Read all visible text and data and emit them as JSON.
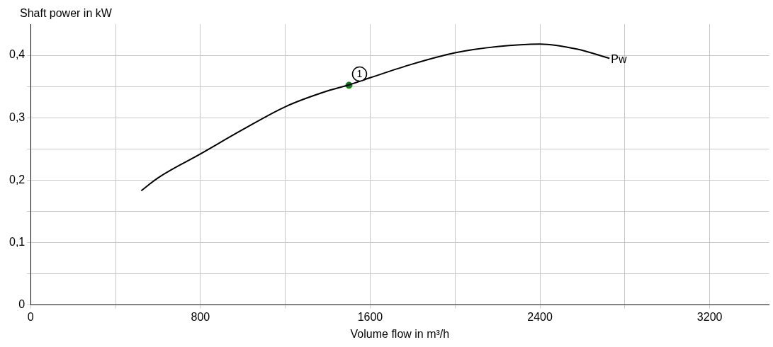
{
  "chart_data": {
    "type": "line",
    "xlabel": "Volume flow in m³/h",
    "ylabel": "Shaft power in kW",
    "xlim": [
      0,
      3480
    ],
    "ylim": [
      0,
      0.45
    ],
    "xticks": [
      0,
      {
        "value": 400,
        "label": null
      },
      800,
      {
        "value": 1200,
        "label": null
      },
      1600,
      {
        "value": 2000,
        "label": null
      },
      2400,
      {
        "value": 2800,
        "label": null
      },
      3200
    ],
    "yticks": [
      0,
      {
        "value": 0.05,
        "label": null
      },
      {
        "value": 0.1,
        "label": "0,1"
      },
      {
        "value": 0.15,
        "label": null
      },
      {
        "value": 0.2,
        "label": "0,2"
      },
      {
        "value": 0.25,
        "label": null
      },
      {
        "value": 0.3,
        "label": "0,3"
      },
      {
        "value": 0.35,
        "label": null
      },
      {
        "value": 0.4,
        "label": "0,4"
      }
    ],
    "grid": true,
    "legend": false,
    "marker": "none",
    "line_style": "solid",
    "series": [
      {
        "name": "Pw",
        "color": "#000000",
        "x": [
          521,
          602,
          800,
          1000,
          1203,
          1400,
          1504,
          1600,
          1800,
          2000,
          2200,
          2400,
          2574,
          2728
        ],
        "values": [
          0.183,
          0.204,
          0.242,
          0.281,
          0.318,
          0.343,
          0.353,
          0.364,
          0.386,
          0.404,
          0.414,
          0.418,
          0.41,
          0.395
        ]
      },
      {
        "type": "scatter",
        "color": "#1a7a1a",
        "marker": "circle",
        "x": [
          1500
        ],
        "values": [
          0.352
        ]
      }
    ],
    "annotations": [
      {
        "text": "1",
        "x": 1550,
        "y": 0.37
      }
    ]
  }
}
